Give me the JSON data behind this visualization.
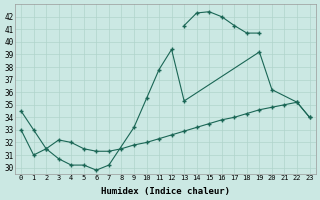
{
  "xlabel": "Humidex (Indice chaleur)",
  "bg_color": "#cbe8e3",
  "grid_color": "#b0d4cc",
  "line_color": "#1a6655",
  "xlim": [
    -0.5,
    23.5
  ],
  "ylim": [
    29.5,
    43.0
  ],
  "xtick_labels": [
    "0",
    "1",
    "2",
    "3",
    "4",
    "5",
    "6",
    "7",
    "8",
    "9",
    "10",
    "11",
    "12",
    "13",
    "14",
    "15",
    "16",
    "17",
    "18",
    "19",
    "20",
    "21",
    "22",
    "23"
  ],
  "ytick_values": [
    30,
    31,
    32,
    33,
    34,
    35,
    36,
    37,
    38,
    39,
    40,
    41,
    42
  ],
  "curve1_x": [
    0,
    1,
    2,
    3,
    4,
    5,
    6,
    7,
    9,
    10,
    11,
    12,
    13,
    19,
    20,
    22,
    23
  ],
  "curve1_y": [
    34.5,
    33.0,
    31.5,
    30.7,
    30.2,
    30.2,
    29.8,
    30.2,
    33.2,
    35.5,
    37.8,
    39.4,
    35.3,
    39.2,
    36.2,
    35.2,
    34.0
  ],
  "curve2_x": [
    13,
    14,
    15,
    16,
    17,
    18,
    19
  ],
  "curve2_y": [
    41.3,
    42.3,
    42.4,
    42.0,
    41.3,
    40.7,
    40.7
  ],
  "curve3_x": [
    0,
    1,
    2,
    3,
    4,
    5,
    6,
    7,
    8,
    9,
    10,
    11,
    12,
    13,
    14,
    15,
    16,
    17,
    18,
    19,
    20,
    21,
    22,
    23
  ],
  "curve3_y": [
    33.0,
    31.0,
    31.5,
    32.2,
    32.0,
    31.5,
    31.3,
    31.3,
    31.5,
    31.8,
    32.0,
    32.3,
    32.6,
    32.9,
    33.2,
    33.5,
    33.8,
    34.0,
    34.3,
    34.6,
    34.8,
    35.0,
    35.2,
    34.0
  ]
}
